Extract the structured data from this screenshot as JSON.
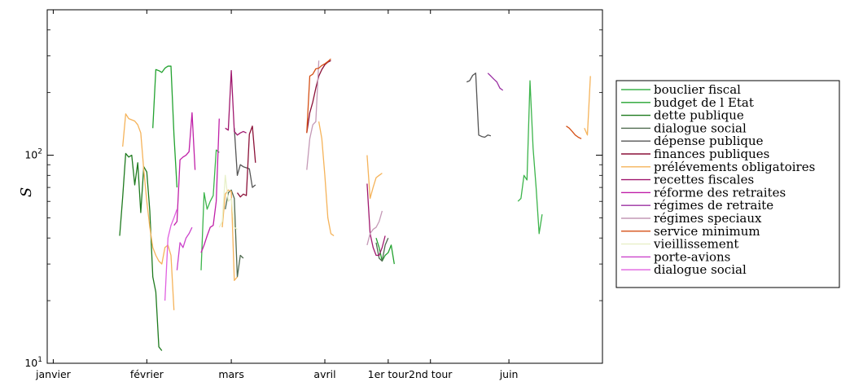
{
  "chart_data": {
    "type": "line",
    "ylabel": "S",
    "yscale": "log",
    "ylim": [
      10,
      500
    ],
    "y_ticks": [
      {
        "value": 10,
        "base": "10",
        "exp": "1"
      },
      {
        "value": 100,
        "base": "10",
        "exp": "2"
      }
    ],
    "x_ticks": [
      {
        "x": 0,
        "label": "janvier"
      },
      {
        "x": 31,
        "label": "février"
      },
      {
        "x": 59,
        "label": "mars"
      },
      {
        "x": 90,
        "label": "avril"
      },
      {
        "x": 111,
        "label": "1er tour"
      },
      {
        "x": 125,
        "label": "2nd tour"
      },
      {
        "x": 151,
        "label": "juin"
      }
    ],
    "xlim": [
      -2,
      182
    ],
    "legend_position": "right",
    "grid": false,
    "series": [
      {
        "name": "bouclier fiscal",
        "color": "#3cb44b",
        "segments": [
          [
            [
              49,
              28
            ],
            [
              50,
              66
            ],
            [
              51,
              55
            ],
            [
              52,
              60
            ],
            [
              53,
              64
            ],
            [
              54,
              106
            ],
            [
              55,
              103
            ]
          ],
          [
            [
              154,
              60
            ],
            [
              155,
              62
            ],
            [
              156,
              80
            ],
            [
              157,
              76
            ],
            [
              158,
              228
            ],
            [
              159,
              108
            ],
            [
              160,
              70
            ],
            [
              161,
              42
            ],
            [
              162,
              52
            ]
          ]
        ]
      },
      {
        "name": "budget de l Etat",
        "color": "#22a22f",
        "segments": [
          [
            [
              33,
              135
            ],
            [
              34,
              258
            ],
            [
              35,
              255
            ],
            [
              36,
              250
            ],
            [
              37,
              262
            ],
            [
              38,
              268
            ],
            [
              39,
              268
            ],
            [
              40,
              125
            ],
            [
              41,
              70
            ]
          ],
          [
            [
              107,
              40
            ],
            [
              108,
              36
            ],
            [
              109,
              31
            ],
            [
              110,
              33
            ],
            [
              111,
              34
            ],
            [
              112,
              37
            ],
            [
              113,
              30
            ]
          ]
        ]
      },
      {
        "name": "dette publique",
        "color": "#1e7a1e",
        "segments": [
          [
            [
              22,
              41
            ],
            [
              23,
              63
            ],
            [
              24,
              102
            ],
            [
              25,
              98
            ],
            [
              26,
              100
            ],
            [
              27,
              72
            ],
            [
              28,
              92
            ],
            [
              29,
              53
            ],
            [
              30,
              88
            ],
            [
              31,
              83
            ],
            [
              32,
              54
            ],
            [
              33,
              26
            ],
            [
              34,
              22
            ],
            [
              35,
              12
            ],
            [
              36,
              11.5
            ]
          ]
        ]
      },
      {
        "name": "dialogue social",
        "color": "#4f6a4f",
        "segments": [
          [
            [
              57,
              55
            ],
            [
              58,
              66
            ],
            [
              59,
              68
            ],
            [
              60,
              62
            ],
            [
              61,
              26
            ],
            [
              62,
              33
            ],
            [
              63,
              32
            ]
          ],
          [
            [
              107,
              38
            ],
            [
              108,
              32
            ],
            [
              109,
              31
            ],
            [
              110,
              37
            ],
            [
              111,
              40
            ]
          ]
        ]
      },
      {
        "name": "dépense publique",
        "color": "#555555",
        "segments": [
          [
            [
              60,
              135
            ],
            [
              61,
              80
            ],
            [
              62,
              90
            ],
            [
              63,
              88
            ],
            [
              64,
              87
            ],
            [
              65,
              86
            ],
            [
              66,
              70
            ],
            [
              67,
              72
            ]
          ],
          [
            [
              137,
              225
            ],
            [
              138,
              228
            ],
            [
              139,
              242
            ],
            [
              140,
              248
            ],
            [
              141,
              125
            ],
            [
              142,
              123
            ],
            [
              143,
              122
            ],
            [
              144,
              125
            ],
            [
              145,
              124
            ]
          ]
        ]
      },
      {
        "name": "finances publiques",
        "color": "#8b1038",
        "segments": [
          [
            [
              61,
              66
            ],
            [
              62,
              63
            ],
            [
              63,
              65
            ],
            [
              64,
              64
            ],
            [
              65,
              126
            ],
            [
              66,
              138
            ],
            [
              67,
              92
            ]
          ],
          [
            [
              84,
              128
            ],
            [
              85,
              160
            ],
            [
              86,
              180
            ],
            [
              87,
              210
            ],
            [
              88,
              240
            ],
            [
              89,
              258
            ],
            [
              90,
              272
            ],
            [
              91,
              280
            ],
            [
              92,
              285
            ]
          ]
        ]
      },
      {
        "name": "prélévements obligatoires",
        "color": "#f5b35a",
        "segments": [
          [
            [
              23,
              110
            ],
            [
              24,
              158
            ],
            [
              25,
              150
            ],
            [
              26,
              148
            ],
            [
              27,
              146
            ],
            [
              28,
              140
            ],
            [
              29,
              128
            ],
            [
              30,
              85
            ],
            [
              31,
              60
            ],
            [
              32,
              45
            ],
            [
              33,
              36
            ],
            [
              34,
              33
            ],
            [
              35,
              31
            ],
            [
              36,
              30
            ],
            [
              37,
              36
            ],
            [
              38,
              37
            ],
            [
              39,
              33
            ],
            [
              40,
              18
            ]
          ],
          [
            [
              56,
              45
            ],
            [
              57,
              65
            ],
            [
              58,
              68
            ],
            [
              59,
              67
            ],
            [
              60,
              25
            ],
            [
              61,
              26
            ]
          ],
          [
            [
              88,
              145
            ],
            [
              89,
              120
            ],
            [
              90,
              80
            ],
            [
              91,
              50
            ],
            [
              92,
              42
            ],
            [
              93,
              41
            ]
          ],
          [
            [
              104,
              100
            ],
            [
              105,
              62
            ],
            [
              106,
              70
            ],
            [
              107,
              78
            ],
            [
              108,
              80
            ],
            [
              109,
              82
            ]
          ],
          [
            [
              176,
              135
            ],
            [
              177,
              125
            ],
            [
              178,
              240
            ]
          ]
        ]
      },
      {
        "name": "recettes fiscales",
        "color": "#a0186e",
        "segments": [
          [
            [
              57,
              135
            ],
            [
              58,
              132
            ],
            [
              59,
              255
            ],
            [
              60,
              130
            ],
            [
              61,
              125
            ],
            [
              62,
              128
            ],
            [
              63,
              130
            ],
            [
              64,
              128
            ]
          ],
          [
            [
              104,
              73
            ],
            [
              105,
              42
            ],
            [
              106,
              36
            ],
            [
              107,
              33
            ],
            [
              108,
              33
            ],
            [
              109,
              36
            ],
            [
              110,
              41
            ]
          ]
        ]
      },
      {
        "name": "réforme des retraites",
        "color": "#c020a8",
        "segments": [
          [
            [
              40,
              46
            ],
            [
              41,
              48
            ],
            [
              42,
              95
            ],
            [
              43,
              98
            ],
            [
              44,
              100
            ],
            [
              45,
              104
            ],
            [
              46,
              160
            ],
            [
              47,
              85
            ]
          ],
          [
            [
              49,
              34
            ],
            [
              50,
              37
            ],
            [
              51,
              41
            ],
            [
              52,
              45
            ],
            [
              53,
              46
            ],
            [
              54,
              60
            ],
            [
              55,
              150
            ]
          ]
        ]
      },
      {
        "name": "régimes de retraite",
        "color": "#9b30a3",
        "segments": [
          [
            [
              144,
              248
            ],
            [
              145,
              240
            ],
            [
              146,
              232
            ],
            [
              147,
              225
            ],
            [
              148,
              210
            ],
            [
              149,
              205
            ]
          ]
        ]
      },
      {
        "name": "régimes speciaux",
        "color": "#c499b6",
        "segments": [
          [
            [
              84,
              85
            ],
            [
              85,
              120
            ],
            [
              86,
              140
            ],
            [
              87,
              145
            ],
            [
              88,
              285
            ]
          ],
          [
            [
              104,
              37
            ],
            [
              105,
              42
            ],
            [
              106,
              44
            ],
            [
              107,
              45
            ],
            [
              108,
              48
            ],
            [
              109,
              54
            ]
          ]
        ]
      },
      {
        "name": "service minimum",
        "color": "#d55016",
        "segments": [
          [
            [
              84,
              128
            ],
            [
              85,
              240
            ],
            [
              86,
              245
            ],
            [
              87,
              260
            ],
            [
              88,
              262
            ],
            [
              89,
              270
            ],
            [
              90,
              275
            ],
            [
              91,
              282
            ],
            [
              92,
              290
            ]
          ],
          [
            [
              170,
              138
            ],
            [
              171,
              135
            ],
            [
              172,
              130
            ],
            [
              173,
              125
            ],
            [
              174,
              122
            ],
            [
              175,
              120
            ]
          ]
        ]
      },
      {
        "name": "vieillissement",
        "color": "#e8f0c8",
        "segments": [
          [
            [
              55,
              45
            ],
            [
              56,
              48
            ],
            [
              57,
              80
            ],
            [
              58,
              60
            ],
            [
              59,
              62
            ],
            [
              60,
              45
            ],
            [
              61,
              44
            ]
          ]
        ]
      },
      {
        "name": "porte-avions",
        "color": "#cc44cc",
        "segments": [
          [
            [
              41,
              28
            ],
            [
              42,
              38
            ],
            [
              43,
              36
            ],
            [
              44,
              40
            ],
            [
              45,
              42
            ],
            [
              46,
              45
            ]
          ]
        ]
      },
      {
        "name": "dialogue social",
        "color": "#e060e0",
        "segments": [
          [
            [
              37,
              20
            ],
            [
              38,
              40
            ],
            [
              39,
              46
            ],
            [
              40,
              50
            ],
            [
              41,
              55
            ]
          ]
        ]
      }
    ]
  }
}
